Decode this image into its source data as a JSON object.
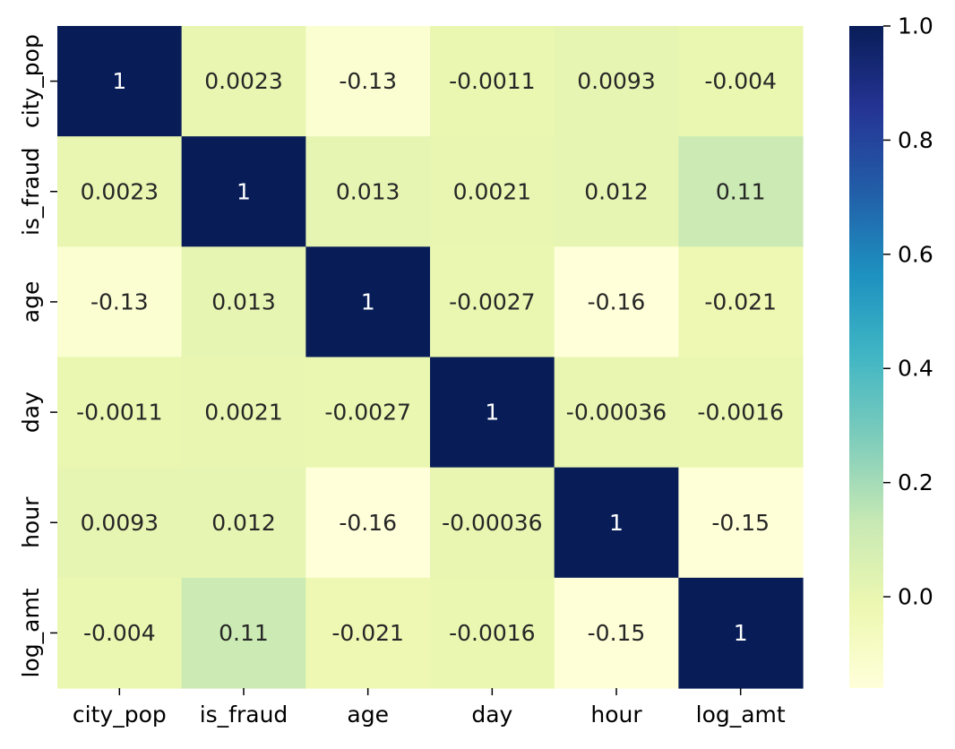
{
  "chart_data": {
    "type": "heatmap",
    "title": "",
    "xlabel": "",
    "ylabel": "",
    "rows": [
      "city_pop",
      "is_fraud",
      "age",
      "day",
      "hour",
      "log_amt"
    ],
    "columns": [
      "city_pop",
      "is_fraud",
      "age",
      "day",
      "hour",
      "log_amt"
    ],
    "values": [
      [
        1,
        0.0023,
        -0.13,
        -0.0011,
        0.0093,
        -0.004
      ],
      [
        0.0023,
        1,
        0.013,
        0.0021,
        0.012,
        0.11
      ],
      [
        -0.13,
        0.013,
        1,
        -0.0027,
        -0.16,
        -0.021
      ],
      [
        -0.0011,
        0.0021,
        -0.0027,
        1,
        -0.00036,
        -0.0016
      ],
      [
        0.0093,
        0.012,
        -0.16,
        -0.00036,
        1,
        -0.15
      ],
      [
        -0.004,
        0.11,
        -0.021,
        -0.0016,
        -0.15,
        1
      ]
    ],
    "annotations": [
      [
        "1",
        "0.0023",
        "-0.13",
        "-0.0011",
        "0.0093",
        "-0.004"
      ],
      [
        "0.0023",
        "1",
        "0.013",
        "0.0021",
        "0.012",
        "0.11"
      ],
      [
        "-0.13",
        "0.013",
        "1",
        "-0.0027",
        "-0.16",
        "-0.021"
      ],
      [
        "-0.0011",
        "0.0021",
        "-0.0027",
        "1",
        "-0.00036",
        "-0.0016"
      ],
      [
        "0.0093",
        "0.012",
        "-0.16",
        "-0.00036",
        "1",
        "-0.15"
      ],
      [
        "-0.004",
        "0.11",
        "-0.021",
        "-0.0016",
        "-0.15",
        "1"
      ]
    ],
    "colormap": "YlGnBu",
    "color_range": [
      -0.16,
      1.0
    ],
    "colorbar_ticks": [
      "0.0",
      "0.2",
      "0.4",
      "0.6",
      "0.8",
      "1.0"
    ],
    "colorbar_tick_values": [
      0.0,
      0.2,
      0.4,
      0.6,
      0.8,
      1.0
    ],
    "text_dark": "#262626",
    "text_light": "#ffffff",
    "axis_color": "#000000"
  }
}
